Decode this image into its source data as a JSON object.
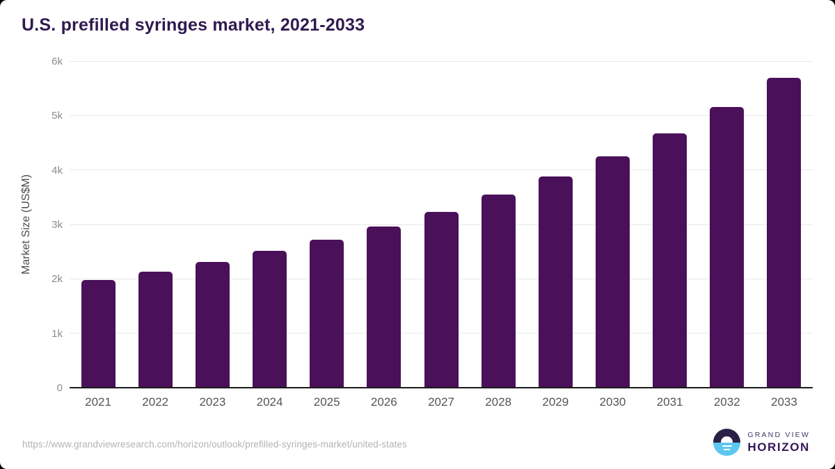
{
  "title": "U.S. prefilled syringes market, 2021-2033",
  "footer": {
    "source_url": "https://www.grandviewresearch.com/horizon/outlook/prefilled-syringes-market/united-states",
    "logo": {
      "top_text": "GRAND VIEW",
      "bottom_text": "HORIZON"
    }
  },
  "colors": {
    "bar": "#4A1059",
    "title_text": "#301A4E",
    "gridline": "#E8E8E8",
    "axis_line": "#1A1A1A",
    "y_tick_text": "#8C8C8C",
    "x_label_text": "#555555",
    "axis_title_text": "#4D4D4D",
    "url_text": "#B3B3B3",
    "logo_dark": "#2B2147",
    "logo_blue": "#5EC7F0"
  },
  "chart_data": {
    "type": "bar",
    "title": "U.S. prefilled syringes market, 2021-2033",
    "categories": [
      "2021",
      "2022",
      "2023",
      "2024",
      "2025",
      "2026",
      "2027",
      "2028",
      "2029",
      "2030",
      "2031",
      "2032",
      "2033"
    ],
    "values": [
      1975,
      2135,
      2315,
      2510,
      2725,
      2960,
      3235,
      3545,
      3875,
      4250,
      4670,
      5160,
      5700
    ],
    "unit": "US$M",
    "xlabel": "",
    "ylabel": "Market Size (US$M)",
    "ylim": [
      0,
      6000
    ],
    "yticks": [
      {
        "value": 0,
        "label": "0"
      },
      {
        "value": 1000,
        "label": "1k"
      },
      {
        "value": 2000,
        "label": "2k"
      },
      {
        "value": 3000,
        "label": "3k"
      },
      {
        "value": 4000,
        "label": "4k"
      },
      {
        "value": 5000,
        "label": "5k"
      },
      {
        "value": 6000,
        "label": "6k"
      }
    ],
    "grid": true,
    "legend": false,
    "bar_color": "#4A1059"
  }
}
